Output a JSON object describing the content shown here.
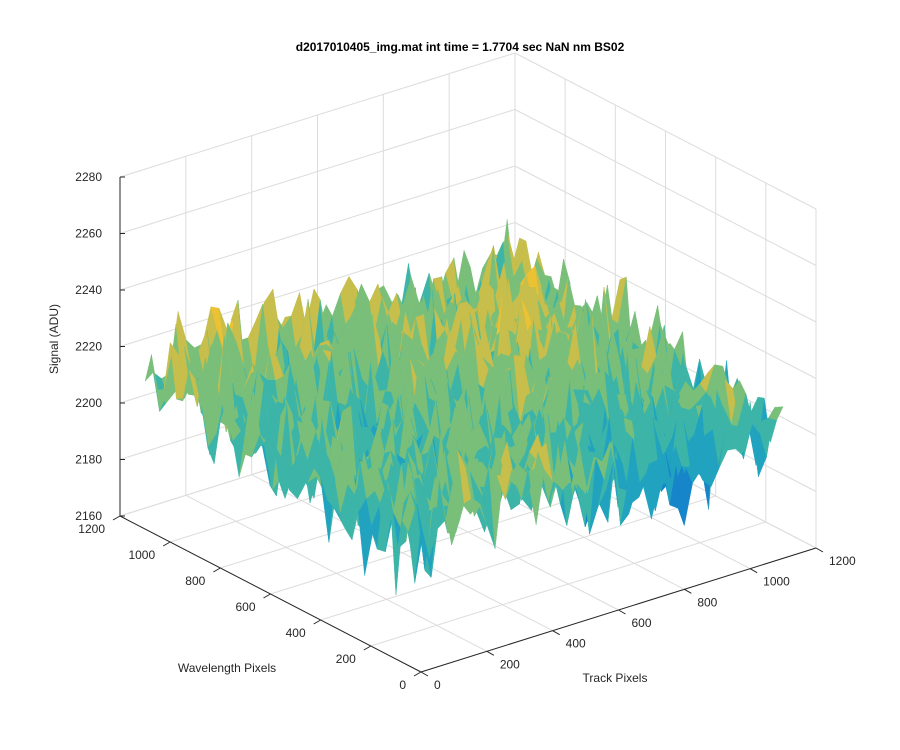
{
  "chart_data": {
    "type": "surface",
    "title": "d2017010405_img.mat int time = 1.7704 sec  NaN nm BS02",
    "xlabel": "Track Pixels",
    "ylabel": "Wavelength Pixels",
    "zlabel": "Signal (ADU)",
    "xlim": [
      0,
      1200
    ],
    "ylim": [
      0,
      1200
    ],
    "zlim": [
      2160,
      2280
    ],
    "xticks": [
      "0",
      "200",
      "400",
      "600",
      "800",
      "1000",
      "1200"
    ],
    "yticks": [
      "0",
      "200",
      "400",
      "600",
      "800",
      "1000",
      "1200"
    ],
    "zticks": [
      "2160",
      "2180",
      "2200",
      "2220",
      "2240",
      "2260",
      "2280"
    ],
    "data_extent": {
      "x": [
        0,
        1100
      ],
      "y": [
        0,
        1100
      ]
    },
    "mean_signal": 2210,
    "signal_range": [
      2165,
      2268
    ],
    "grid": true,
    "colormap": [
      "#1685c9",
      "#21a3c0",
      "#3cb5a8",
      "#79bf7a",
      "#c7be4b",
      "#ecc233"
    ]
  }
}
